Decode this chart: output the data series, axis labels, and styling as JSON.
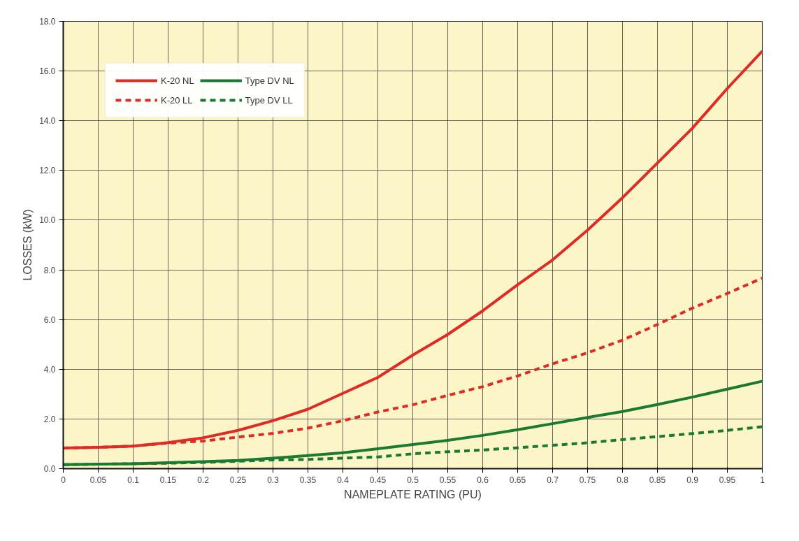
{
  "chart_data": {
    "type": "line",
    "xlabel": "NAMEPLATE RATING (PU)",
    "ylabel": "LOSSES (kW)",
    "x": [
      0,
      0.05,
      0.1,
      0.15,
      0.2,
      0.25,
      0.3,
      0.35,
      0.4,
      0.45,
      0.5,
      0.55,
      0.6,
      0.65,
      0.7,
      0.75,
      0.8,
      0.85,
      0.9,
      0.95,
      1
    ],
    "series": [
      {
        "name": "K-20 NL",
        "color": "#e02a24",
        "line_style": "solid",
        "values": [
          0.83,
          0.86,
          0.91,
          1.05,
          1.24,
          1.54,
          1.93,
          2.39,
          3.03,
          3.67,
          4.57,
          5.4,
          6.35,
          7.4,
          8.4,
          9.6,
          10.9,
          12.3,
          13.7,
          15.3,
          16.8
        ]
      },
      {
        "name": "K-20 LL",
        "color": "#e02a24",
        "line_style": "dashed",
        "values": [
          0.83,
          0.86,
          0.91,
          1.03,
          1.11,
          1.27,
          1.42,
          1.63,
          1.93,
          2.28,
          2.57,
          2.95,
          3.3,
          3.73,
          4.22,
          4.66,
          5.17,
          5.8,
          6.46,
          7.05,
          7.67
        ]
      },
      {
        "name": "Type DV NL",
        "color": "#1a7a32",
        "line_style": "solid",
        "values": [
          0.16,
          0.18,
          0.2,
          0.24,
          0.28,
          0.33,
          0.42,
          0.53,
          0.64,
          0.8,
          0.97,
          1.14,
          1.34,
          1.57,
          1.81,
          2.06,
          2.3,
          2.58,
          2.88,
          3.2,
          3.52
        ]
      },
      {
        "name": "Type DV LL",
        "color": "#1a7a32",
        "line_style": "dashed",
        "values": [
          0.16,
          0.18,
          0.2,
          0.22,
          0.25,
          0.3,
          0.35,
          0.37,
          0.42,
          0.47,
          0.6,
          0.68,
          0.75,
          0.84,
          0.94,
          1.04,
          1.17,
          1.29,
          1.41,
          1.54,
          1.69
        ]
      }
    ],
    "xlim": [
      0,
      1
    ],
    "ylim": [
      0,
      18
    ],
    "xticks": [
      0,
      0.05,
      0.1,
      0.15,
      0.2,
      0.25,
      0.3,
      0.35,
      0.4,
      0.45,
      0.5,
      0.55,
      0.6,
      0.65,
      0.7,
      0.75,
      0.8,
      0.85,
      0.9,
      0.95,
      1
    ],
    "yticks": [
      {
        "value": 0,
        "label": "0.0"
      },
      {
        "value": 2,
        "label": "2.0"
      },
      {
        "value": 4,
        "label": "4.0"
      },
      {
        "value": 6,
        "label": "6.0"
      },
      {
        "value": 8,
        "label": "8.0"
      },
      {
        "value": 10,
        "label": "10.0"
      },
      {
        "value": 12,
        "label": "12.0"
      },
      {
        "value": 14,
        "label": "14.0"
      },
      {
        "value": 16,
        "label": "16.0"
      },
      {
        "value": 18,
        "label": "18.0"
      }
    ],
    "grid": true,
    "legend": "top left",
    "marker": "none"
  }
}
